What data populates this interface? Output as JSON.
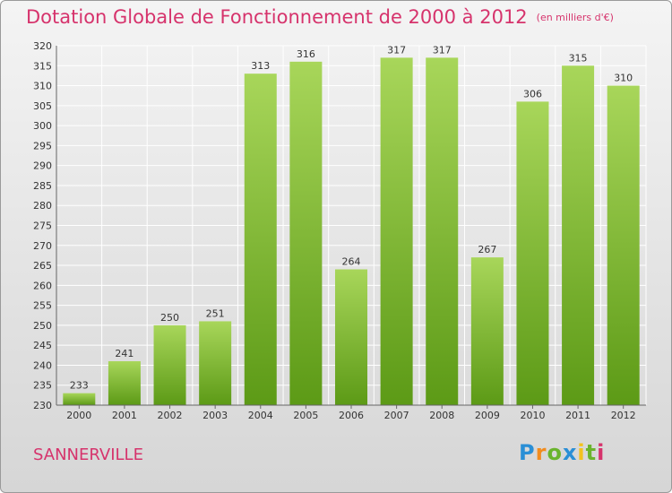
{
  "header": {
    "title": "Dotation Globale de Fonctionnement de 2000 à 2012",
    "unit": "(en milliers d'€)"
  },
  "footer": {
    "commune": "SANNERVILLE",
    "logo": "Proxiti"
  },
  "colors": {
    "title": "#d6336c",
    "bar_light": "#a8d65a",
    "bar_dark": "#5c9a16",
    "grid": "#ffffff"
  },
  "chart_data": {
    "type": "bar",
    "title": "Dotation Globale de Fonctionnement de 2000 à 2012",
    "categories": [
      "2000",
      "2001",
      "2002",
      "2003",
      "2004",
      "2005",
      "2006",
      "2007",
      "2008",
      "2009",
      "2010",
      "2011",
      "2012"
    ],
    "values": [
      233,
      241,
      250,
      251,
      313,
      316,
      264,
      317,
      317,
      267,
      306,
      315,
      310
    ],
    "ylim": [
      230,
      320
    ],
    "ytick_step": 5,
    "grid": true,
    "legend": "none"
  }
}
